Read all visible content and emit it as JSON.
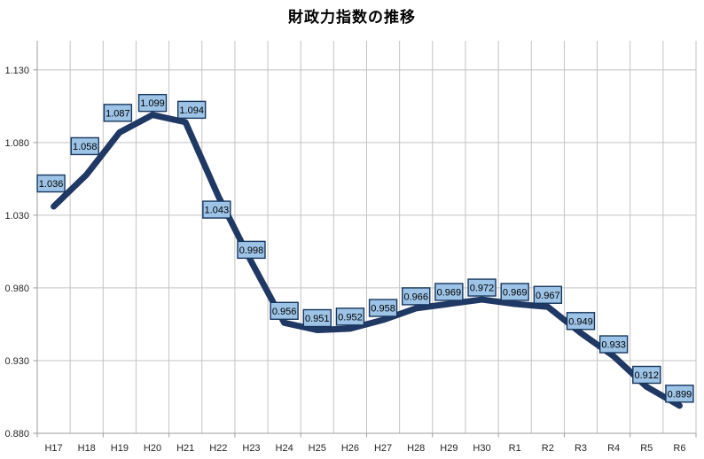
{
  "chart": {
    "title": "財政力指数の推移"
  },
  "chart_data": {
    "type": "line",
    "title": "財政力指数の推移",
    "categories": [
      "H17",
      "H18",
      "H19",
      "H20",
      "H21",
      "H22",
      "H23",
      "H24",
      "H25",
      "H26",
      "H27",
      "H28",
      "H29",
      "H30",
      "R1",
      "R2",
      "R3",
      "R4",
      "R5",
      "R6"
    ],
    "values": [
      1.036,
      1.058,
      1.087,
      1.099,
      1.094,
      1.043,
      0.998,
      0.956,
      0.951,
      0.952,
      0.958,
      0.966,
      0.969,
      0.972,
      0.969,
      0.967,
      0.949,
      0.933,
      0.912,
      0.899
    ],
    "xlabel": "",
    "ylabel": "",
    "ylim": [
      0.88,
      1.15
    ],
    "ymajor": 0.05,
    "ytick_labels": [
      "0.880",
      "0.930",
      "0.980",
      "1.030",
      "1.080",
      "1.130"
    ],
    "value_decimals": 3,
    "grid": true,
    "legend": "none",
    "data_labels": "above",
    "xtick_mark_interval": 2,
    "colors": {
      "line": "#203864",
      "label_box_fill": "#9DC3E6",
      "label_box_border": "#17365D",
      "label_text": "#000000",
      "gridline": "#C3C3C3",
      "axis_line": "#9E9E9E",
      "tick_text": "#262626"
    },
    "label_offsets": {
      "0": [
        -3,
        -26
      ],
      "1": [
        -2,
        -32
      ],
      "2": [
        -2,
        -22
      ],
      "4": [
        7,
        -14
      ],
      "5": [
        -2,
        15
      ]
    },
    "label_offset_default": [
      0,
      -13.5
    ]
  }
}
